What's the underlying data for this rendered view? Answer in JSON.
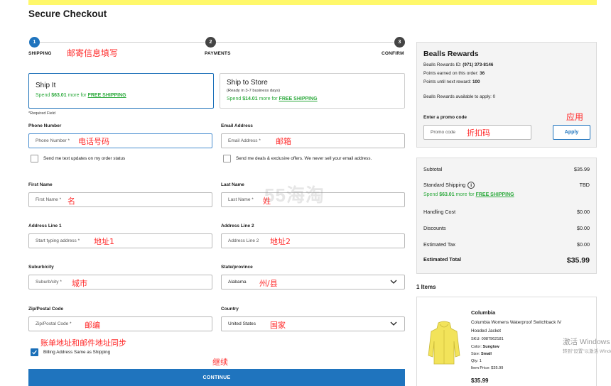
{
  "page": {
    "title": "Secure Checkout"
  },
  "stepper": {
    "steps": [
      {
        "num": "1",
        "label": "SHIPPING"
      },
      {
        "num": "2",
        "label": "PAYMENTS"
      },
      {
        "num": "3",
        "label": "CONFIRM"
      }
    ]
  },
  "annotations": {
    "shipping": "邮寄信息填写",
    "phone": "电话号码",
    "email": "邮箱",
    "first_name": "名",
    "last_name": "姓",
    "address1": "地址1",
    "address2": "地址2",
    "city": "城市",
    "state": "州/县",
    "zip": "邮编",
    "country": "国家",
    "billing_same": "账单地址和邮件地址同步",
    "continue": "继续",
    "apply": "应用",
    "promo": "折扣码"
  },
  "shipping_options": {
    "ship_it": {
      "title": "Ship It",
      "promo_prefix": "Spend ",
      "promo_amount": "$63.01",
      "promo_mid": " more for ",
      "promo_link": "FREE SHIPPING"
    },
    "ship_to_store": {
      "title": "Ship to Store",
      "subtitle": "(Ready in 3-7 business days)",
      "promo_prefix": "Spend ",
      "promo_amount": "$14.01",
      "promo_mid": " more for ",
      "promo_link": "FREE SHIPPING"
    }
  },
  "form": {
    "required_note": "*Required Field",
    "phone": {
      "label": "Phone Number",
      "placeholder": "Phone Number *"
    },
    "email": {
      "label": "Email Address",
      "placeholder": "Email Address *"
    },
    "text_updates": "Send me text updates on my order status",
    "email_deals": "Send me deals & exclusive offers. We never sell your email address.",
    "first_name": {
      "label": "First Name",
      "placeholder": "First Name *"
    },
    "last_name": {
      "label": "Last Name",
      "placeholder": "Last Name *"
    },
    "address1": {
      "label": "Address Line 1",
      "placeholder": "Start typing address *"
    },
    "address2": {
      "label": "Address Line 2",
      "placeholder": "Address Line 2"
    },
    "city": {
      "label": "Suburb/city",
      "placeholder": "Suburb/city *"
    },
    "state": {
      "label": "State/province",
      "value": "Alabama"
    },
    "zip": {
      "label": "Zip/Postal Code",
      "placeholder": "Zip/Postal Code *"
    },
    "country": {
      "label": "Country",
      "value": "United States"
    },
    "billing_same": "Billing Address Same as Shipping",
    "continue_label": "CONTINUE"
  },
  "rewards": {
    "title": "Bealls Rewards",
    "id_label": "Bealls Rewards ID: ",
    "id_value": "(971) 373-8146",
    "earned_label": "Points earned on this order: ",
    "earned_value": "36",
    "next_label": "Points until next reward: ",
    "next_value": "100",
    "available": "Bealls Rewards available to apply: 0",
    "promo_label": "Enter a promo code",
    "promo_placeholder": "Promo code",
    "apply_label": "Apply"
  },
  "summary": {
    "subtotal": {
      "label": "Subtotal",
      "value": "$35.99"
    },
    "shipping": {
      "label": "Standard Shipping",
      "value": "TBD",
      "promo_prefix": "Spend ",
      "promo_amount": "$63.01",
      "promo_mid": " more for ",
      "promo_link": "FREE SHIPPING"
    },
    "handling": {
      "label": "Handling Cost",
      "value": "$0.00"
    },
    "discounts": {
      "label": "Discounts",
      "value": "$0.00"
    },
    "tax": {
      "label": "Estimated Tax",
      "value": "$0.00"
    },
    "total": {
      "label": "Estimated Total",
      "value": "$35.99"
    }
  },
  "items": {
    "count_label": "1 Items",
    "list": [
      {
        "brand": "Columbia",
        "name_line1": "Columbia Womens Waterproof Switchback IV",
        "name_line2": "Hooded Jacket",
        "sku": "SKU: 0087962181",
        "color_label": "Color: ",
        "color_value": "Sunglow",
        "size_label": "Size: ",
        "size_value": "Small",
        "qty": "Qty: 1",
        "item_price": "Item Price: $35.99",
        "price": "$35.99"
      }
    ]
  },
  "watermarks": {
    "site": "55海淘",
    "windows_line1": "激活 Windows",
    "windows_line2": "转到\"设置\"以激活 Windows。"
  },
  "colors": {
    "accent": "#1f74be",
    "promo_green": "#2eaa3e",
    "annotation_red": "#ff2a2a",
    "top_bar": "#fff86a"
  }
}
